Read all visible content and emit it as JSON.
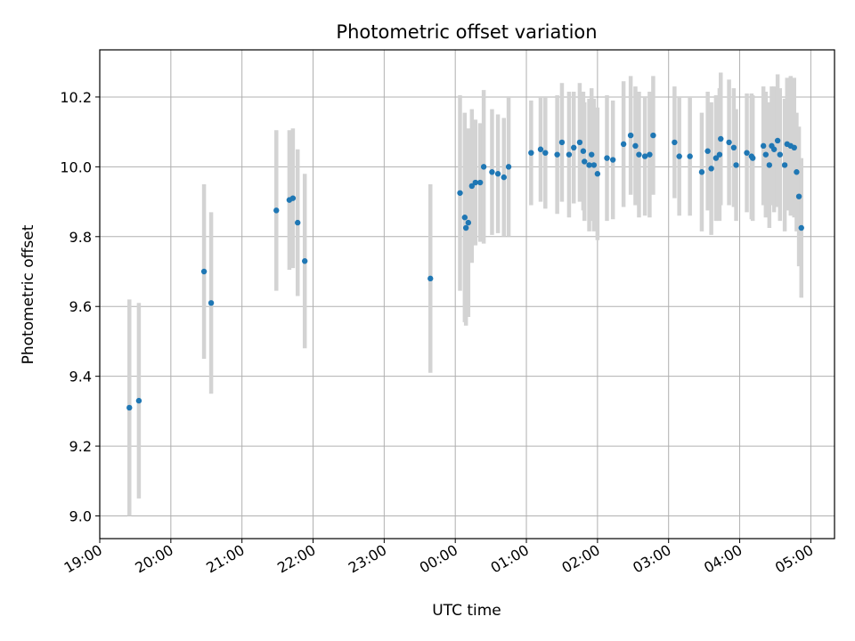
{
  "chart_data": {
    "type": "scatter",
    "title": "Photometric offset variation",
    "xlabel": "UTC time",
    "ylabel": "Photometric offset",
    "xlim": [
      "19:00",
      "05:20"
    ],
    "ylim": [
      8.935,
      10.335
    ],
    "grid": true,
    "x_tick_labels": [
      "19:00",
      "20:00",
      "21:00",
      "22:00",
      "23:00",
      "00:00",
      "01:00",
      "02:00",
      "03:00",
      "04:00",
      "05:00"
    ],
    "y_tick_labels": [
      "9.0",
      "9.2",
      "9.4",
      "9.6",
      "9.8",
      "10.0",
      "10.2"
    ],
    "errorbar_color": "#d3d3d3",
    "marker_color": "#1f77b4",
    "series": [
      {
        "x": [
          "19:25",
          "19:33",
          "20:28",
          "20:34",
          "21:29",
          "21:40",
          "21:43",
          "21:47",
          "21:53",
          "23:39",
          "00:04",
          "00:08",
          "00:09",
          "00:11",
          "00:14",
          "00:17",
          "00:21",
          "00:24",
          "00:31",
          "00:36",
          "00:41",
          "00:45",
          "01:04",
          "01:12",
          "01:16",
          "01:26",
          "01:30",
          "01:36",
          "01:40",
          "01:45",
          "01:48",
          "01:49",
          "01:53",
          "01:55",
          "01:57",
          "02:00",
          "02:08",
          "02:13",
          "02:22",
          "02:28",
          "02:32",
          "02:35",
          "02:40",
          "02:44",
          "02:47",
          "03:05",
          "03:09",
          "03:18",
          "03:28",
          "03:33",
          "03:36",
          "03:40",
          "03:43",
          "03:44",
          "03:51",
          "03:55",
          "03:57",
          "04:06",
          "04:10",
          "04:11",
          "04:20",
          "04:22",
          "04:25",
          "04:27",
          "04:29",
          "04:32",
          "04:34",
          "04:38",
          "04:40",
          "04:43",
          "04:46"
        ],
        "y": [
          9.31,
          9.33,
          9.7,
          9.61,
          9.875,
          9.905,
          9.91,
          9.84,
          9.73,
          9.68,
          9.925,
          9.855,
          9.825,
          9.84,
          9.945,
          9.955,
          9.955,
          10.0,
          9.985,
          9.98,
          9.97,
          10.0,
          10.04,
          10.05,
          10.04,
          10.035,
          10.07,
          10.035,
          10.055,
          10.07,
          10.045,
          10.015,
          10.005,
          10.035,
          10.005,
          9.98,
          10.025,
          10.02,
          10.065,
          10.09,
          10.06,
          10.035,
          10.03,
          10.035,
          10.09,
          10.07,
          10.03,
          10.03,
          9.985,
          10.045,
          9.995,
          10.025,
          10.035,
          10.08,
          10.07,
          10.055,
          10.005,
          10.04,
          10.03,
          10.025,
          10.06,
          10.035,
          10.005,
          10.06,
          10.05,
          10.075,
          10.035,
          10.005,
          10.065,
          10.06,
          10.055
        ],
        "yerr": [
          0.31,
          0.28,
          0.25,
          0.26,
          0.23,
          0.2,
          0.2,
          0.21,
          0.25,
          0.27,
          0.28,
          0.3,
          0.28,
          0.27,
          0.22,
          0.18,
          0.17,
          0.22,
          0.18,
          0.17,
          0.17,
          0.2,
          0.15,
          0.15,
          0.16,
          0.17,
          0.17,
          0.18,
          0.16,
          0.17,
          0.17,
          0.17,
          0.19,
          0.19,
          0.19,
          0.19,
          0.18,
          0.17,
          0.18,
          0.17,
          0.17,
          0.18,
          0.17,
          0.18,
          0.17,
          0.16,
          0.17,
          0.17,
          0.17,
          0.17,
          0.19,
          0.18,
          0.19,
          0.19,
          0.18,
          0.17,
          0.16,
          0.17,
          0.18,
          0.18,
          0.17,
          0.18,
          0.18,
          0.17,
          0.18,
          0.19,
          0.19,
          0.19,
          0.19,
          0.2,
          0.2
        ]
      },
      {
        "x": [
          "04:48",
          "04:50",
          "04:52"
        ],
        "y": [
          9.985,
          9.915,
          9.825
        ],
        "yerr": [
          0.17,
          0.2,
          0.2
        ]
      }
    ]
  }
}
